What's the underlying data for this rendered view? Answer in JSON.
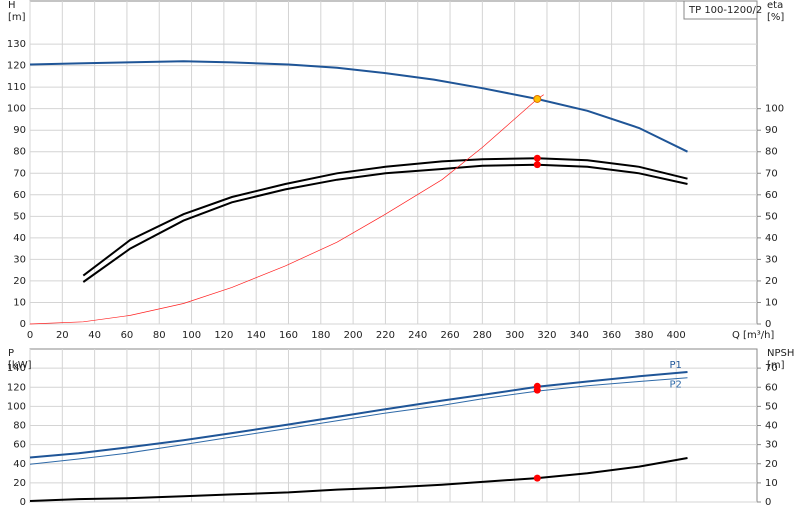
{
  "chart_data": [
    {
      "type": "line",
      "label": "TP 100-1200/2",
      "xlabel": "Q [m³/h]",
      "ylabel": [
        "H",
        "[m]"
      ],
      "y2label": [
        "eta",
        "[%]"
      ],
      "xlim": [
        0,
        450
      ],
      "xticks": [
        0,
        20,
        40,
        60,
        80,
        100,
        120,
        140,
        160,
        180,
        200,
        220,
        240,
        260,
        280,
        300,
        320,
        340,
        360,
        380,
        400
      ],
      "ylim": [
        0,
        150
      ],
      "yticks": [
        0,
        10,
        20,
        30,
        40,
        50,
        60,
        70,
        80,
        90,
        100,
        110,
        120,
        130
      ],
      "y2lim": [
        0,
        150
      ],
      "y2ticks": [
        0,
        10,
        20,
        30,
        40,
        50,
        60,
        70,
        80,
        90,
        100
      ],
      "grid": true,
      "series": [
        {
          "color": "#1f5597",
          "width": 2,
          "x": [
            0,
            30,
            60,
            95,
            125,
            160,
            190,
            220,
            250,
            280,
            314,
            345,
            377,
            407
          ],
          "values": [
            120.5,
            121,
            121.5,
            122,
            121.5,
            120.5,
            119,
            116.5,
            113.5,
            109.5,
            104.5,
            99,
            91,
            80
          ]
        },
        {
          "color": "#000000",
          "width": 2,
          "axis": "y2",
          "x": [
            33,
            62,
            95,
            125,
            158,
            190,
            220,
            255,
            280,
            314,
            345,
            377,
            407
          ],
          "values": [
            22.5,
            39,
            51,
            59,
            65,
            70,
            73,
            75.5,
            76.5,
            77,
            76,
            73,
            67.5
          ]
        },
        {
          "color": "#000000",
          "width": 2,
          "axis": "y2",
          "x": [
            33,
            62,
            95,
            125,
            158,
            190,
            220,
            255,
            280,
            314,
            345,
            377,
            407
          ],
          "values": [
            19.5,
            35,
            48,
            56.5,
            62.5,
            67,
            70,
            72,
            73.5,
            74,
            73,
            70,
            65
          ]
        },
        {
          "color": "#ff2020",
          "width": 0.7,
          "x": [
            0,
            33,
            62,
            95,
            125,
            158,
            190,
            220,
            255,
            280,
            314,
            318
          ],
          "values": [
            0,
            1,
            4,
            9.5,
            17,
            27,
            38,
            51,
            67,
            82,
            104.5,
            106.5
          ]
        },
        {
          "color": "#ffc000",
          "marker": true,
          "x": [
            314
          ],
          "values": [
            104.5
          ]
        },
        {
          "color": "#ff0000",
          "marker": true,
          "axis": "y2",
          "x": [
            314,
            314
          ],
          "values": [
            77,
            74
          ]
        }
      ]
    },
    {
      "type": "line",
      "ylabel": [
        "P",
        "[kW]"
      ],
      "y2label": [
        "NPSH",
        "[m]"
      ],
      "xlim": [
        0,
        450
      ],
      "xticks": [
        0,
        20,
        40,
        60,
        80,
        100,
        120,
        140,
        160,
        180,
        200,
        220,
        240,
        260,
        280,
        300,
        320,
        340,
        360,
        380,
        400
      ],
      "ylim": [
        0,
        160
      ],
      "yticks": [
        0,
        20,
        40,
        60,
        80,
        100,
        120,
        140
      ],
      "y2lim": [
        0,
        80
      ],
      "y2ticks": [
        0,
        10,
        20,
        30,
        40,
        50,
        60,
        70
      ],
      "grid": true,
      "series": [
        {
          "name": "P1",
          "color": "#1f5597",
          "width": 2,
          "x": [
            0,
            30,
            60,
            95,
            125,
            160,
            190,
            220,
            255,
            280,
            314,
            345,
            377,
            407
          ],
          "values": [
            46.5,
            51,
            57,
            64.5,
            72,
            81,
            89,
            97,
            106,
            112,
            120.5,
            126,
            131.5,
            136
          ]
        },
        {
          "name": "P2",
          "color": "#2f6aa8",
          "width": 1,
          "x": [
            0,
            30,
            60,
            95,
            125,
            160,
            190,
            220,
            255,
            280,
            314,
            345,
            377,
            407
          ],
          "values": [
            39.5,
            45,
            51,
            60,
            68,
            77,
            85,
            93,
            101,
            108,
            116,
            121.5,
            126,
            130
          ]
        },
        {
          "color": "#000000",
          "width": 2,
          "axis": "y2",
          "x": [
            0,
            30,
            60,
            95,
            125,
            160,
            190,
            220,
            255,
            280,
            314,
            345,
            377,
            407
          ],
          "values": [
            0.5,
            1.5,
            2,
            3,
            4,
            5,
            6.5,
            7.5,
            9,
            10.5,
            12.5,
            15,
            18.5,
            23
          ]
        },
        {
          "color": "#ff0000",
          "marker": true,
          "x": [
            314,
            314
          ],
          "values": [
            121,
            117
          ]
        },
        {
          "color": "#ff0000",
          "marker": true,
          "axis": "y2",
          "x": [
            314
          ],
          "values": [
            12.5
          ]
        }
      ]
    }
  ]
}
